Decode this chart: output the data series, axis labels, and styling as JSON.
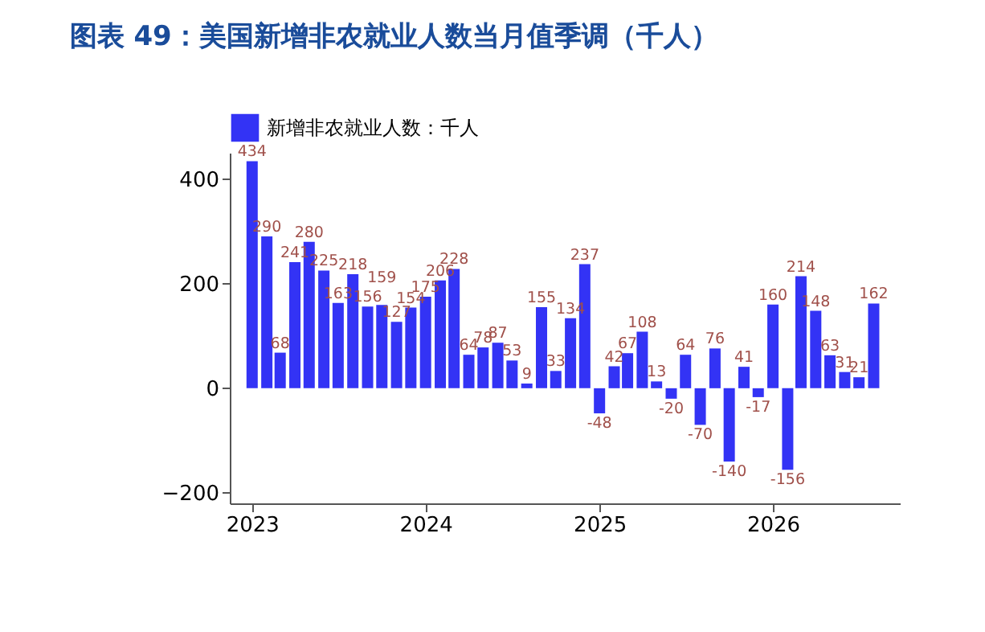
{
  "chart_data": {
    "type": "bar",
    "title": "图表 49：美国新增非农就业人数当月值季调（千人）",
    "x": [
      "2023-01",
      "2023-02",
      "2023-03",
      "2023-04",
      "2023-05",
      "2023-06",
      "2023-07",
      "2023-08",
      "2023-09",
      "2023-10",
      "2023-11",
      "2023-12",
      "2024-01",
      "2024-02",
      "2024-03",
      "2024-04",
      "2024-05",
      "2024-06",
      "2024-07",
      "2024-08",
      "2024-09",
      "2024-10",
      "2024-11",
      "2024-12",
      "2025-01",
      "2025-02",
      "2025-03",
      "2025-04",
      "2025-05",
      "2025-06",
      "2025-07",
      "2025-08",
      "2025-09",
      "2025-10",
      "2025-11",
      "2025-12",
      "2026-01",
      "2026-02",
      "2026-03",
      "2026-04",
      "2026-05",
      "2026-06",
      "2026-07",
      "2026-08"
    ],
    "series": [
      {
        "name": "新增非农就业人数：千人",
        "color": "#3333f5",
        "values": [
          434,
          290,
          68,
          241,
          280,
          225,
          163,
          218,
          156,
          159,
          127,
          154,
          175,
          206,
          228,
          64,
          78,
          87,
          53,
          9,
          155,
          33,
          134,
          237,
          -48,
          42,
          67,
          108,
          13,
          -20,
          64,
          -70,
          76,
          -140,
          41,
          -17,
          160,
          -156,
          214,
          148,
          63,
          31,
          21,
          162
        ]
      }
    ],
    "xlim": [
      "2022-11-15",
      "2026-09-25"
    ],
    "xticks": [
      "2023",
      "2024",
      "2025",
      "2026"
    ],
    "ylim": [
      -220,
      450
    ],
    "yticks": [
      -200,
      0,
      200,
      400
    ],
    "data_labels": true,
    "grid": false,
    "legend": "top"
  }
}
